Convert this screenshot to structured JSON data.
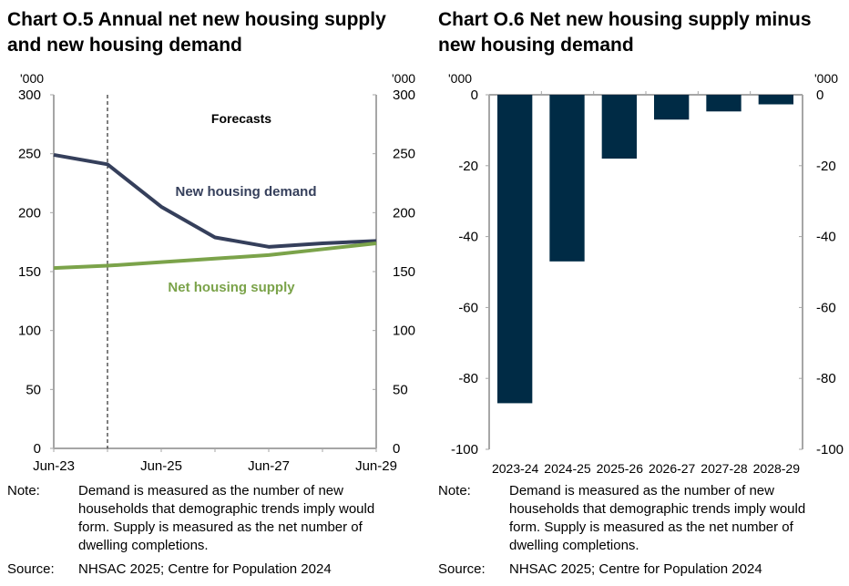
{
  "chart_data": [
    {
      "type": "line",
      "title": "Chart O.5 Annual net new housing supply and new housing demand",
      "unit_left": "'000",
      "unit_right": "'000",
      "x": [
        "Jun-23",
        "Jun-24",
        "Jun-25",
        "Jun-26",
        "Jun-27",
        "Jun-28",
        "Jun-29"
      ],
      "xtick_labels": [
        "Jun-23",
        "Jun-25",
        "Jun-27",
        "Jun-29"
      ],
      "ylim": [
        0,
        300
      ],
      "yticks": [
        0,
        50,
        100,
        150,
        200,
        250,
        300
      ],
      "forecast_start": "Jun-24",
      "annotation": "Forecasts",
      "series": [
        {
          "name": "New housing demand",
          "color": "#353f5b",
          "values": [
            249,
            241,
            205,
            179,
            171,
            174,
            176
          ]
        },
        {
          "name": "Net housing supply",
          "color": "#7ba34a",
          "values": [
            153,
            155,
            158,
            161,
            164,
            169,
            174
          ]
        }
      ],
      "note_label": "Note:",
      "note": "Demand is measured as the number of new households that demographic trends imply would form. Supply is measured as the net number of dwelling completions.",
      "source_label": "Source:",
      "source": "NHSAC 2025; Centre for Population 2024"
    },
    {
      "type": "bar",
      "title": "Chart O.6 Net new housing supply minus new housing demand",
      "unit_left": "'000",
      "unit_right": "'000",
      "categories": [
        "2023-24",
        "2024-25",
        "2025-26",
        "2026-27",
        "2027-28",
        "2028-29"
      ],
      "values": [
        -87,
        -47,
        -18,
        -7,
        -4.7,
        -2.7
      ],
      "color": "#002b45",
      "ylim": [
        -100,
        0
      ],
      "yticks": [
        0,
        -20,
        -40,
        -60,
        -80,
        -100
      ],
      "note_label": "Note:",
      "note": "Demand is measured as the number of new households that demographic trends imply would form. Supply is measured as the net number of dwelling completions.",
      "source_label": "Source:",
      "source": "NHSAC 2025; Centre for Population 2024"
    }
  ]
}
